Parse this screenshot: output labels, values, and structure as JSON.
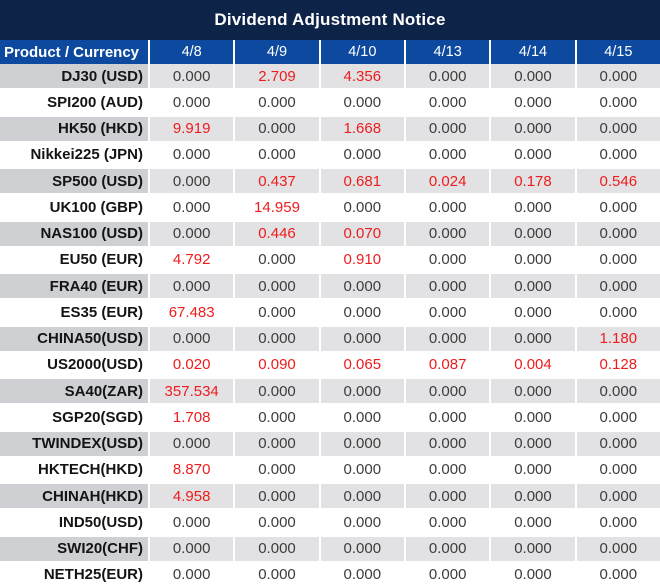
{
  "colors": {
    "title_bg": "#0d2347",
    "header_bg": "#0d4a9f",
    "red_value": "#ee1c1c",
    "stripe_label_bg": "#ced0d4",
    "stripe_value_bg": "#e2e2e4"
  },
  "chart_data": {
    "type": "table",
    "title": "Dividend Adjustment Notice",
    "columns": [
      "Product / Currency",
      "4/8",
      "4/9",
      "4/10",
      "4/13",
      "4/14",
      "4/15"
    ],
    "rows": [
      {
        "label": "DJ30 (USD)",
        "values": [
          "0.000",
          "2.709",
          "4.356",
          "0.000",
          "0.000",
          "0.000"
        ],
        "red": [
          false,
          true,
          true,
          false,
          false,
          false
        ]
      },
      {
        "label": "SPI200 (AUD)",
        "values": [
          "0.000",
          "0.000",
          "0.000",
          "0.000",
          "0.000",
          "0.000"
        ],
        "red": [
          false,
          false,
          false,
          false,
          false,
          false
        ]
      },
      {
        "label": "HK50 (HKD)",
        "values": [
          "9.919",
          "0.000",
          "1.668",
          "0.000",
          "0.000",
          "0.000"
        ],
        "red": [
          true,
          false,
          true,
          false,
          false,
          false
        ]
      },
      {
        "label": "Nikkei225 (JPN)",
        "values": [
          "0.000",
          "0.000",
          "0.000",
          "0.000",
          "0.000",
          "0.000"
        ],
        "red": [
          false,
          false,
          false,
          false,
          false,
          false
        ]
      },
      {
        "label": "SP500 (USD)",
        "values": [
          "0.000",
          "0.437",
          "0.681",
          "0.024",
          "0.178",
          "0.546"
        ],
        "red": [
          false,
          true,
          true,
          true,
          true,
          true
        ]
      },
      {
        "label": "UK100 (GBP)",
        "values": [
          "0.000",
          "14.959",
          "0.000",
          "0.000",
          "0.000",
          "0.000"
        ],
        "red": [
          false,
          true,
          false,
          false,
          false,
          false
        ]
      },
      {
        "label": "NAS100 (USD)",
        "values": [
          "0.000",
          "0.446",
          "0.070",
          "0.000",
          "0.000",
          "0.000"
        ],
        "red": [
          false,
          true,
          true,
          false,
          false,
          false
        ]
      },
      {
        "label": "EU50 (EUR)",
        "values": [
          "4.792",
          "0.000",
          "0.910",
          "0.000",
          "0.000",
          "0.000"
        ],
        "red": [
          true,
          false,
          true,
          false,
          false,
          false
        ]
      },
      {
        "label": "FRA40 (EUR)",
        "values": [
          "0.000",
          "0.000",
          "0.000",
          "0.000",
          "0.000",
          "0.000"
        ],
        "red": [
          false,
          false,
          false,
          false,
          false,
          false
        ]
      },
      {
        "label": "ES35 (EUR)",
        "values": [
          "67.483",
          "0.000",
          "0.000",
          "0.000",
          "0.000",
          "0.000"
        ],
        "red": [
          true,
          false,
          false,
          false,
          false,
          false
        ]
      },
      {
        "label": "CHINA50(USD)",
        "values": [
          "0.000",
          "0.000",
          "0.000",
          "0.000",
          "0.000",
          "1.180"
        ],
        "red": [
          false,
          false,
          false,
          false,
          false,
          true
        ]
      },
      {
        "label": "US2000(USD)",
        "values": [
          "0.020",
          "0.090",
          "0.065",
          "0.087",
          "0.004",
          "0.128"
        ],
        "red": [
          true,
          true,
          true,
          true,
          true,
          true
        ]
      },
      {
        "label": "SA40(ZAR)",
        "values": [
          "357.534",
          "0.000",
          "0.000",
          "0.000",
          "0.000",
          "0.000"
        ],
        "red": [
          true,
          false,
          false,
          false,
          false,
          false
        ]
      },
      {
        "label": "SGP20(SGD)",
        "values": [
          "1.708",
          "0.000",
          "0.000",
          "0.000",
          "0.000",
          "0.000"
        ],
        "red": [
          true,
          false,
          false,
          false,
          false,
          false
        ]
      },
      {
        "label": "TWINDEX(USD)",
        "values": [
          "0.000",
          "0.000",
          "0.000",
          "0.000",
          "0.000",
          "0.000"
        ],
        "red": [
          false,
          false,
          false,
          false,
          false,
          false
        ]
      },
      {
        "label": "HKTECH(HKD)",
        "values": [
          "8.870",
          "0.000",
          "0.000",
          "0.000",
          "0.000",
          "0.000"
        ],
        "red": [
          true,
          false,
          false,
          false,
          false,
          false
        ]
      },
      {
        "label": "CHINAH(HKD)",
        "values": [
          "4.958",
          "0.000",
          "0.000",
          "0.000",
          "0.000",
          "0.000"
        ],
        "red": [
          true,
          false,
          false,
          false,
          false,
          false
        ]
      },
      {
        "label": "IND50(USD)",
        "values": [
          "0.000",
          "0.000",
          "0.000",
          "0.000",
          "0.000",
          "0.000"
        ],
        "red": [
          false,
          false,
          false,
          false,
          false,
          false
        ]
      },
      {
        "label": "SWI20(CHF)",
        "values": [
          "0.000",
          "0.000",
          "0.000",
          "0.000",
          "0.000",
          "0.000"
        ],
        "red": [
          false,
          false,
          false,
          false,
          false,
          false
        ]
      },
      {
        "label": "NETH25(EUR)",
        "values": [
          "0.000",
          "0.000",
          "0.000",
          "0.000",
          "0.000",
          "0.000"
        ],
        "red": [
          false,
          false,
          false,
          false,
          false,
          false
        ]
      }
    ]
  }
}
